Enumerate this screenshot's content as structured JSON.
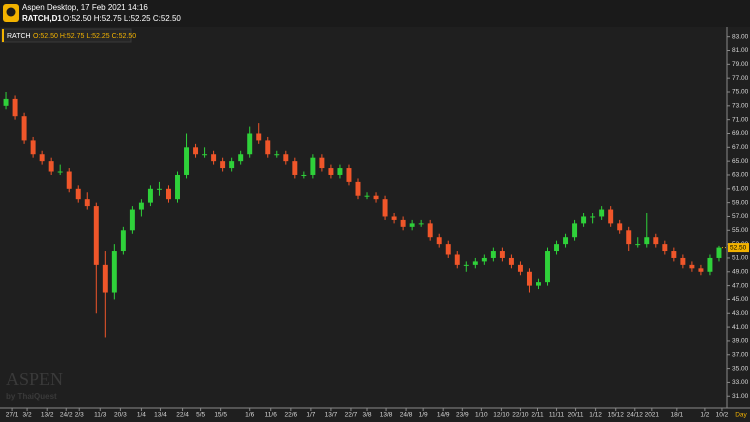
{
  "header": {
    "title": "Aspen Desktop, 17 Feb 2021 14:16",
    "symbol": "RATCH,D1",
    "ohlc": "O:52.50 H:52.75 L:52.25 C:52.50"
  },
  "watermark": {
    "brand": "ASPEN",
    "tagline": "by ThaiQuest"
  },
  "chart_data": {
    "type": "candlestick",
    "legend_symbol": "RATCH",
    "legend_ohlc": "O:52.50 H:52.75 L:52.25 C:52.50",
    "up_color": "#2fd13a",
    "down_color": "#f0562a",
    "open": [
      73,
      74,
      71.5,
      68,
      66,
      65,
      63.5,
      63.5,
      61,
      59.5,
      58.5,
      50,
      46,
      52,
      55,
      58,
      59,
      61,
      61,
      59.5,
      63,
      67,
      66,
      66,
      65,
      64,
      65,
      66,
      69,
      68,
      66,
      66,
      65,
      63,
      63,
      65.5,
      64,
      63,
      64,
      62,
      60,
      60,
      59.5,
      57,
      56.5,
      55.5,
      56,
      56,
      54,
      53,
      51.5,
      50,
      50,
      50.5,
      51,
      52,
      51,
      50,
      49,
      47,
      47.5,
      52,
      53,
      54,
      56,
      57,
      57,
      58,
      56,
      55,
      53,
      53,
      54,
      53,
      52,
      51,
      50,
      49.5,
      49,
      51
    ],
    "high": [
      75,
      74.5,
      72,
      68.5,
      66.5,
      65.5,
      64.5,
      64,
      61.5,
      60.5,
      59,
      52,
      53,
      55.5,
      58.5,
      59.5,
      61.5,
      62,
      61.5,
      63.5,
      69,
      67.5,
      67,
      66.5,
      65.5,
      65.5,
      66.5,
      70,
      70.5,
      68.5,
      66.5,
      66.5,
      65.5,
      63.5,
      66,
      66,
      64.5,
      64.5,
      64.5,
      62.5,
      60.5,
      60.5,
      60,
      57.5,
      57,
      56.5,
      56.5,
      56.5,
      54.5,
      53.5,
      52,
      50.5,
      51,
      51.5,
      52.5,
      52.5,
      51.5,
      50.5,
      49.5,
      48,
      52.5,
      53.5,
      54.5,
      56.5,
      57.5,
      57.5,
      58.5,
      58.5,
      56.5,
      55.5,
      54,
      57.5,
      54.5,
      53.5,
      52.5,
      51.5,
      50.5,
      50,
      51.5,
      52.75
    ],
    "low": [
      72.5,
      71,
      67.5,
      65.5,
      64.5,
      63,
      63,
      60.5,
      59,
      58,
      43,
      39.5,
      45,
      51.5,
      54.5,
      57,
      58.5,
      60,
      59,
      59,
      62.5,
      65.5,
      65.5,
      64.5,
      63.5,
      63.5,
      64.5,
      65.5,
      67.5,
      65.5,
      65.5,
      64.5,
      62.5,
      62.5,
      62.5,
      63.5,
      62.5,
      62.5,
      61.5,
      59.5,
      59.5,
      59,
      56.5,
      56,
      55,
      55,
      55.5,
      53.5,
      52.5,
      51,
      49.5,
      49,
      49.5,
      50,
      50.5,
      50.5,
      49.5,
      48.5,
      46,
      46.5,
      47,
      51.5,
      52.5,
      53.5,
      55.5,
      56,
      56.5,
      55.5,
      54.5,
      52,
      52.5,
      52.5,
      52.5,
      51.5,
      50.5,
      49.5,
      49,
      48.5,
      48.5,
      50.5
    ],
    "close": [
      74,
      71.5,
      68,
      66,
      65,
      63.5,
      63.5,
      61,
      59.5,
      58.5,
      50,
      46,
      52,
      55,
      58,
      59,
      61,
      61,
      59.5,
      63,
      67,
      66,
      66,
      65,
      64,
      65,
      66,
      69,
      68,
      66,
      66,
      65,
      63,
      63,
      65.5,
      64,
      63,
      64,
      62,
      60,
      60,
      59.5,
      57,
      56.5,
      55.5,
      56,
      56,
      54,
      53,
      51.5,
      50,
      50,
      50.5,
      51,
      52,
      51,
      50,
      49,
      47,
      47.5,
      52,
      53,
      54,
      56,
      57,
      57,
      58,
      56,
      55,
      53,
      53,
      54,
      53,
      52,
      51,
      50,
      49.5,
      49,
      51,
      52.5
    ],
    "last_price": {
      "value": 52.5,
      "label": "52.50"
    },
    "period_label": "Day",
    "xlim": [
      -0.67,
      79.89
    ],
    "xticks": [
      {
        "value": 0.67,
        "label": "27/1"
      },
      {
        "value": 2.33,
        "label": "3/2"
      },
      {
        "value": 4.56,
        "label": "13/2"
      },
      {
        "value": 6.67,
        "label": "24/2"
      },
      {
        "value": 8.11,
        "label": "2/3"
      },
      {
        "value": 10.44,
        "label": "11/3"
      },
      {
        "value": 12.67,
        "label": "20/3"
      },
      {
        "value": 15,
        "label": "1/4"
      },
      {
        "value": 17.11,
        "label": "13/4"
      },
      {
        "value": 19.56,
        "label": "22/4"
      },
      {
        "value": 21.56,
        "label": "5/5"
      },
      {
        "value": 23.78,
        "label": "15/5"
      },
      {
        "value": 27,
        "label": "1/6"
      },
      {
        "value": 29.33,
        "label": "11/6"
      },
      {
        "value": 31.56,
        "label": "22/6"
      },
      {
        "value": 33.78,
        "label": "1/7"
      },
      {
        "value": 36,
        "label": "13/7"
      },
      {
        "value": 38.22,
        "label": "22/7"
      },
      {
        "value": 40,
        "label": "3/8"
      },
      {
        "value": 42.11,
        "label": "13/8"
      },
      {
        "value": 44.33,
        "label": "24/8"
      },
      {
        "value": 46.22,
        "label": "1/9"
      },
      {
        "value": 48.44,
        "label": "14/9"
      },
      {
        "value": 50.56,
        "label": "23/9"
      },
      {
        "value": 52.67,
        "label": "1/10"
      },
      {
        "value": 54.89,
        "label": "12/10"
      },
      {
        "value": 57,
        "label": "22/10"
      },
      {
        "value": 58.89,
        "label": "2/11"
      },
      {
        "value": 61,
        "label": "11/11"
      },
      {
        "value": 63.11,
        "label": "20/11"
      },
      {
        "value": 65.33,
        "label": "1/12"
      },
      {
        "value": 67.56,
        "label": "15/12"
      },
      {
        "value": 69.67,
        "label": "24/12"
      },
      {
        "value": 71.56,
        "label": "2021"
      },
      {
        "value": 74.33,
        "label": "18/1"
      },
      {
        "value": 77.44,
        "label": "1/2"
      },
      {
        "value": 79.33,
        "label": "10/2"
      }
    ],
    "ylim": [
      29.3,
      84.4
    ],
    "yticks": [
      {
        "value": 31,
        "label": "31.00"
      },
      {
        "value": 33,
        "label": "33.00"
      },
      {
        "value": 35,
        "label": "35.00"
      },
      {
        "value": 37,
        "label": "37.00"
      },
      {
        "value": 39,
        "label": "39.00"
      },
      {
        "value": 41,
        "label": "41.00"
      },
      {
        "value": 43,
        "label": "43.00"
      },
      {
        "value": 45,
        "label": "45.00"
      },
      {
        "value": 47,
        "label": "47.00"
      },
      {
        "value": 49,
        "label": "49.00"
      },
      {
        "value": 51,
        "label": "51.00"
      },
      {
        "value": 53,
        "label": "53.00"
      },
      {
        "value": 55,
        "label": "55.00"
      },
      {
        "value": 57,
        "label": "57.00"
      },
      {
        "value": 59,
        "label": "59.00"
      },
      {
        "value": 61,
        "label": "61.00"
      },
      {
        "value": 63,
        "label": "63.00"
      },
      {
        "value": 65,
        "label": "65.00"
      },
      {
        "value": 67,
        "label": "67.00"
      },
      {
        "value": 69,
        "label": "69.00"
      },
      {
        "value": 71,
        "label": "71.00"
      },
      {
        "value": 73,
        "label": "73.00"
      },
      {
        "value": 75,
        "label": "75.00"
      },
      {
        "value": 77,
        "label": "77.00"
      },
      {
        "value": 79,
        "label": "79.00"
      },
      {
        "value": 81,
        "label": "81.00"
      },
      {
        "value": 83,
        "label": "83.00"
      }
    ]
  }
}
